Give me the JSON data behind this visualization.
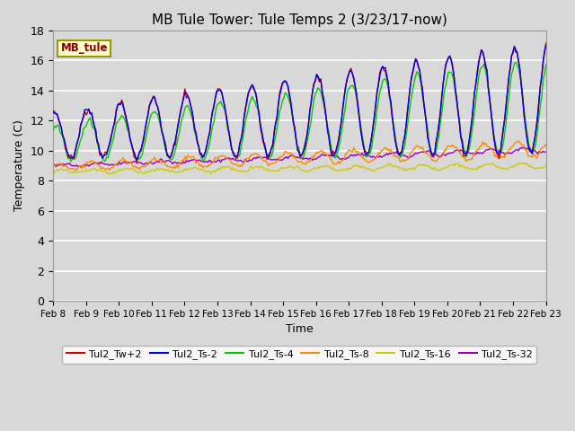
{
  "title": "MB Tule Tower: Tule Temps 2 (3/23/17-now)",
  "xlabel": "Time",
  "ylabel": "Temperature (C)",
  "ylim": [
    0,
    18
  ],
  "yticks": [
    0,
    2,
    4,
    6,
    8,
    10,
    12,
    14,
    16,
    18
  ],
  "x_labels": [
    "Feb 8",
    "Feb 9",
    "Feb 10",
    "Feb 11",
    "Feb 12",
    "Feb 13",
    "Feb 14",
    "Feb 15",
    "Feb 16",
    "Feb 17",
    "Feb 18",
    "Feb 19",
    "Feb 20",
    "Feb 21",
    "Feb 22",
    "Feb 23"
  ],
  "background_color": "#d8d8d8",
  "plot_bg_color": "#d8d8d8",
  "grid_color": "#ffffff",
  "legend_box_color": "#ffffcc",
  "legend_box_edge": "#999900",
  "series": [
    {
      "name": "Tul2_Tw+2",
      "color": "#cc0000"
    },
    {
      "name": "Tul2_Ts-2",
      "color": "#0000ee"
    },
    {
      "name": "Tul2_Ts-4",
      "color": "#00cc00"
    },
    {
      "name": "Tul2_Ts-8",
      "color": "#ff8800"
    },
    {
      "name": "Tul2_Ts-16",
      "color": "#cccc00"
    },
    {
      "name": "Tul2_Ts-32",
      "color": "#9900bb"
    }
  ]
}
